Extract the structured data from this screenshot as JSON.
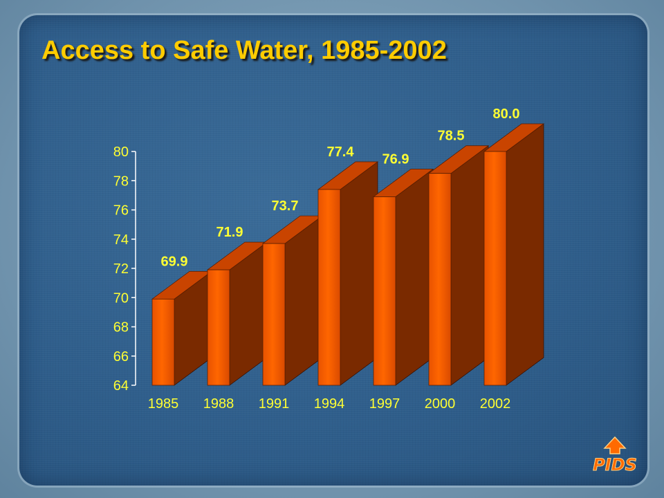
{
  "slide": {
    "title": "Access to Safe Water, 1985-2002",
    "logo_text": "PIDS"
  },
  "colors": {
    "title": "#ffcc00",
    "data_label": "#ffff33",
    "axis_text": "#ffff33",
    "bar_front": "#ff6600",
    "bar_side": "#7a2a00",
    "bar_top": "#c94400",
    "background": "#2f5f8d"
  },
  "chart_data": {
    "type": "bar",
    "title": "Access to Safe Water, 1985-2002",
    "categories": [
      "1985",
      "1988",
      "1991",
      "1994",
      "1997",
      "2000",
      "2002"
    ],
    "values": [
      69.9,
      71.9,
      73.7,
      77.4,
      76.9,
      78.5,
      80.0
    ],
    "data_labels": [
      "69.9",
      "71.9",
      "73.7",
      "77.4",
      "76.9",
      "78.5",
      "80.0"
    ],
    "xlabel": "",
    "ylabel": "",
    "ylim": [
      64,
      80
    ],
    "yticks": [
      64,
      66,
      68,
      70,
      72,
      74,
      76,
      78,
      80
    ],
    "style": "3d-column",
    "grid": false,
    "legend": "none"
  }
}
